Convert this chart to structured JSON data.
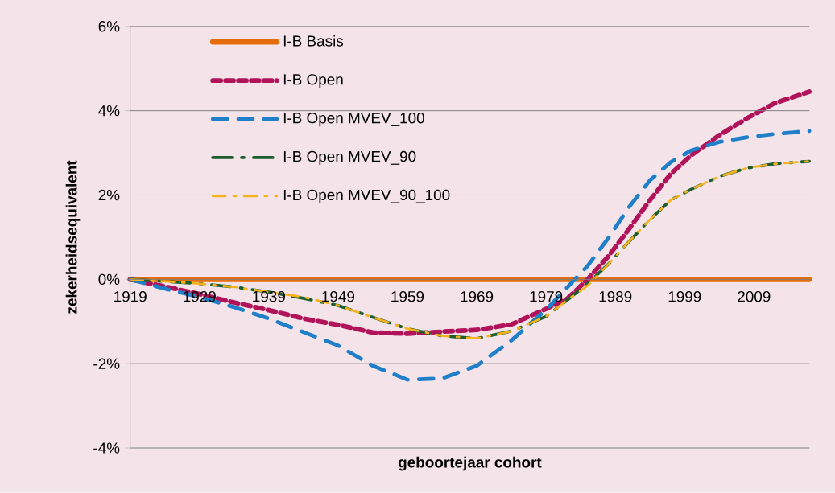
{
  "chart_data": {
    "type": "line",
    "xlabel": "geboortejaar cohort",
    "ylabel": "zekerheidsequivalent",
    "xlim": [
      1919,
      2017
    ],
    "xticks": [
      1919,
      1929,
      1939,
      1949,
      1959,
      1969,
      1979,
      1989,
      1999,
      2009
    ],
    "ylim": [
      -4,
      6
    ],
    "yticks": [
      {
        "value": -4,
        "label": "-4%"
      },
      {
        "value": -2,
        "label": "-2%"
      },
      {
        "value": 0,
        "label": "0%"
      },
      {
        "value": 2,
        "label": "2%"
      },
      {
        "value": 4,
        "label": "4%"
      },
      {
        "value": 6,
        "label": "6%"
      }
    ],
    "grid": "y",
    "legend": "top left",
    "marker": "none",
    "x": [
      1919,
      1924,
      1929,
      1934,
      1939,
      1944,
      1949,
      1954,
      1959,
      1964,
      1969,
      1974,
      1979,
      1982,
      1985,
      1988,
      1991,
      1994,
      1997,
      2000,
      2004,
      2008,
      2012,
      2017
    ],
    "series": [
      {
        "name": "I-B Basis",
        "color": "#e46c0a",
        "line_style": "solid",
        "x": [
          1919,
          2017
        ],
        "values": [
          0,
          0
        ]
      },
      {
        "name": "I-B Open",
        "color": "#b0135a",
        "line_style": "dashed",
        "values": [
          0,
          -0.17,
          -0.35,
          -0.55,
          -0.73,
          -0.93,
          -1.08,
          -1.26,
          -1.29,
          -1.24,
          -1.2,
          -1.07,
          -0.7,
          -0.47,
          0.0,
          0.55,
          1.2,
          1.88,
          2.5,
          2.95,
          3.42,
          3.82,
          4.18,
          4.45
        ]
      },
      {
        "name": "I-B Open MVEV_100",
        "color": "#1f7fc8",
        "line_style": "dashed",
        "values": [
          0,
          -0.22,
          -0.42,
          -0.66,
          -0.93,
          -1.25,
          -1.57,
          -2.05,
          -2.38,
          -2.35,
          -2.05,
          -1.45,
          -0.72,
          -0.2,
          0.32,
          0.98,
          1.72,
          2.35,
          2.78,
          3.06,
          3.26,
          3.37,
          3.45,
          3.52
        ]
      },
      {
        "name": "I-B Open MVEV_90",
        "color": "#1e5e2e",
        "line_style": "dashed",
        "values": [
          0,
          -0.05,
          -0.1,
          -0.18,
          -0.3,
          -0.45,
          -0.62,
          -0.9,
          -1.17,
          -1.34,
          -1.4,
          -1.23,
          -0.88,
          -0.5,
          -0.1,
          0.36,
          0.9,
          1.42,
          1.88,
          2.14,
          2.44,
          2.64,
          2.74,
          2.8
        ]
      },
      {
        "name": "I-B Open MVEV_90_100",
        "color": "#f5b21a",
        "line_style": "dashed",
        "values": [
          0,
          -0.05,
          -0.1,
          -0.18,
          -0.3,
          -0.42,
          -0.62,
          -0.9,
          -1.17,
          -1.34,
          -1.4,
          -1.23,
          -0.88,
          -0.5,
          -0.15,
          0.36,
          0.9,
          1.42,
          1.88,
          2.14,
          2.44,
          2.64,
          2.74,
          2.8
        ]
      }
    ]
  }
}
